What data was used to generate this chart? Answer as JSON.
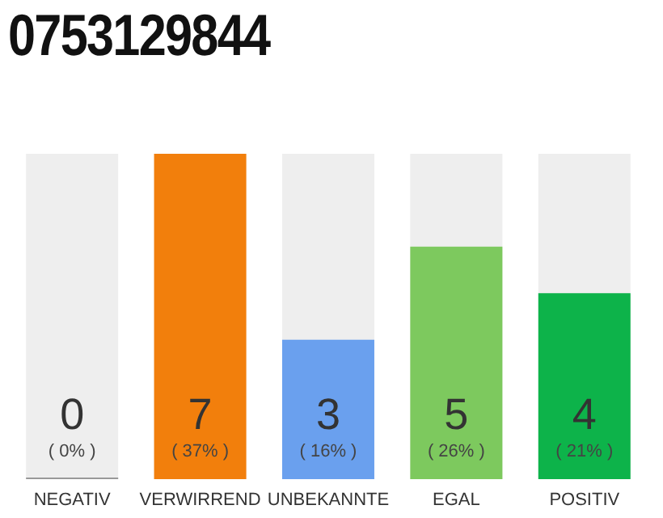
{
  "chart_data": {
    "type": "bar",
    "title": "0753129844",
    "categories": [
      "NEGATIV",
      "VERWIRREND",
      "UNBEKANNTE",
      "EGAL",
      "POSITIV"
    ],
    "values": [
      0,
      7,
      3,
      5,
      4
    ],
    "colors": [
      "#999999",
      "#f27f0c",
      "#6aa0ee",
      "#7dc95e",
      "#0db34a"
    ],
    "data_labels": true,
    "annotations": [
      "( 0% )",
      "( 37% )",
      "( 16% )",
      "( 26% )",
      "( 21% )"
    ]
  }
}
